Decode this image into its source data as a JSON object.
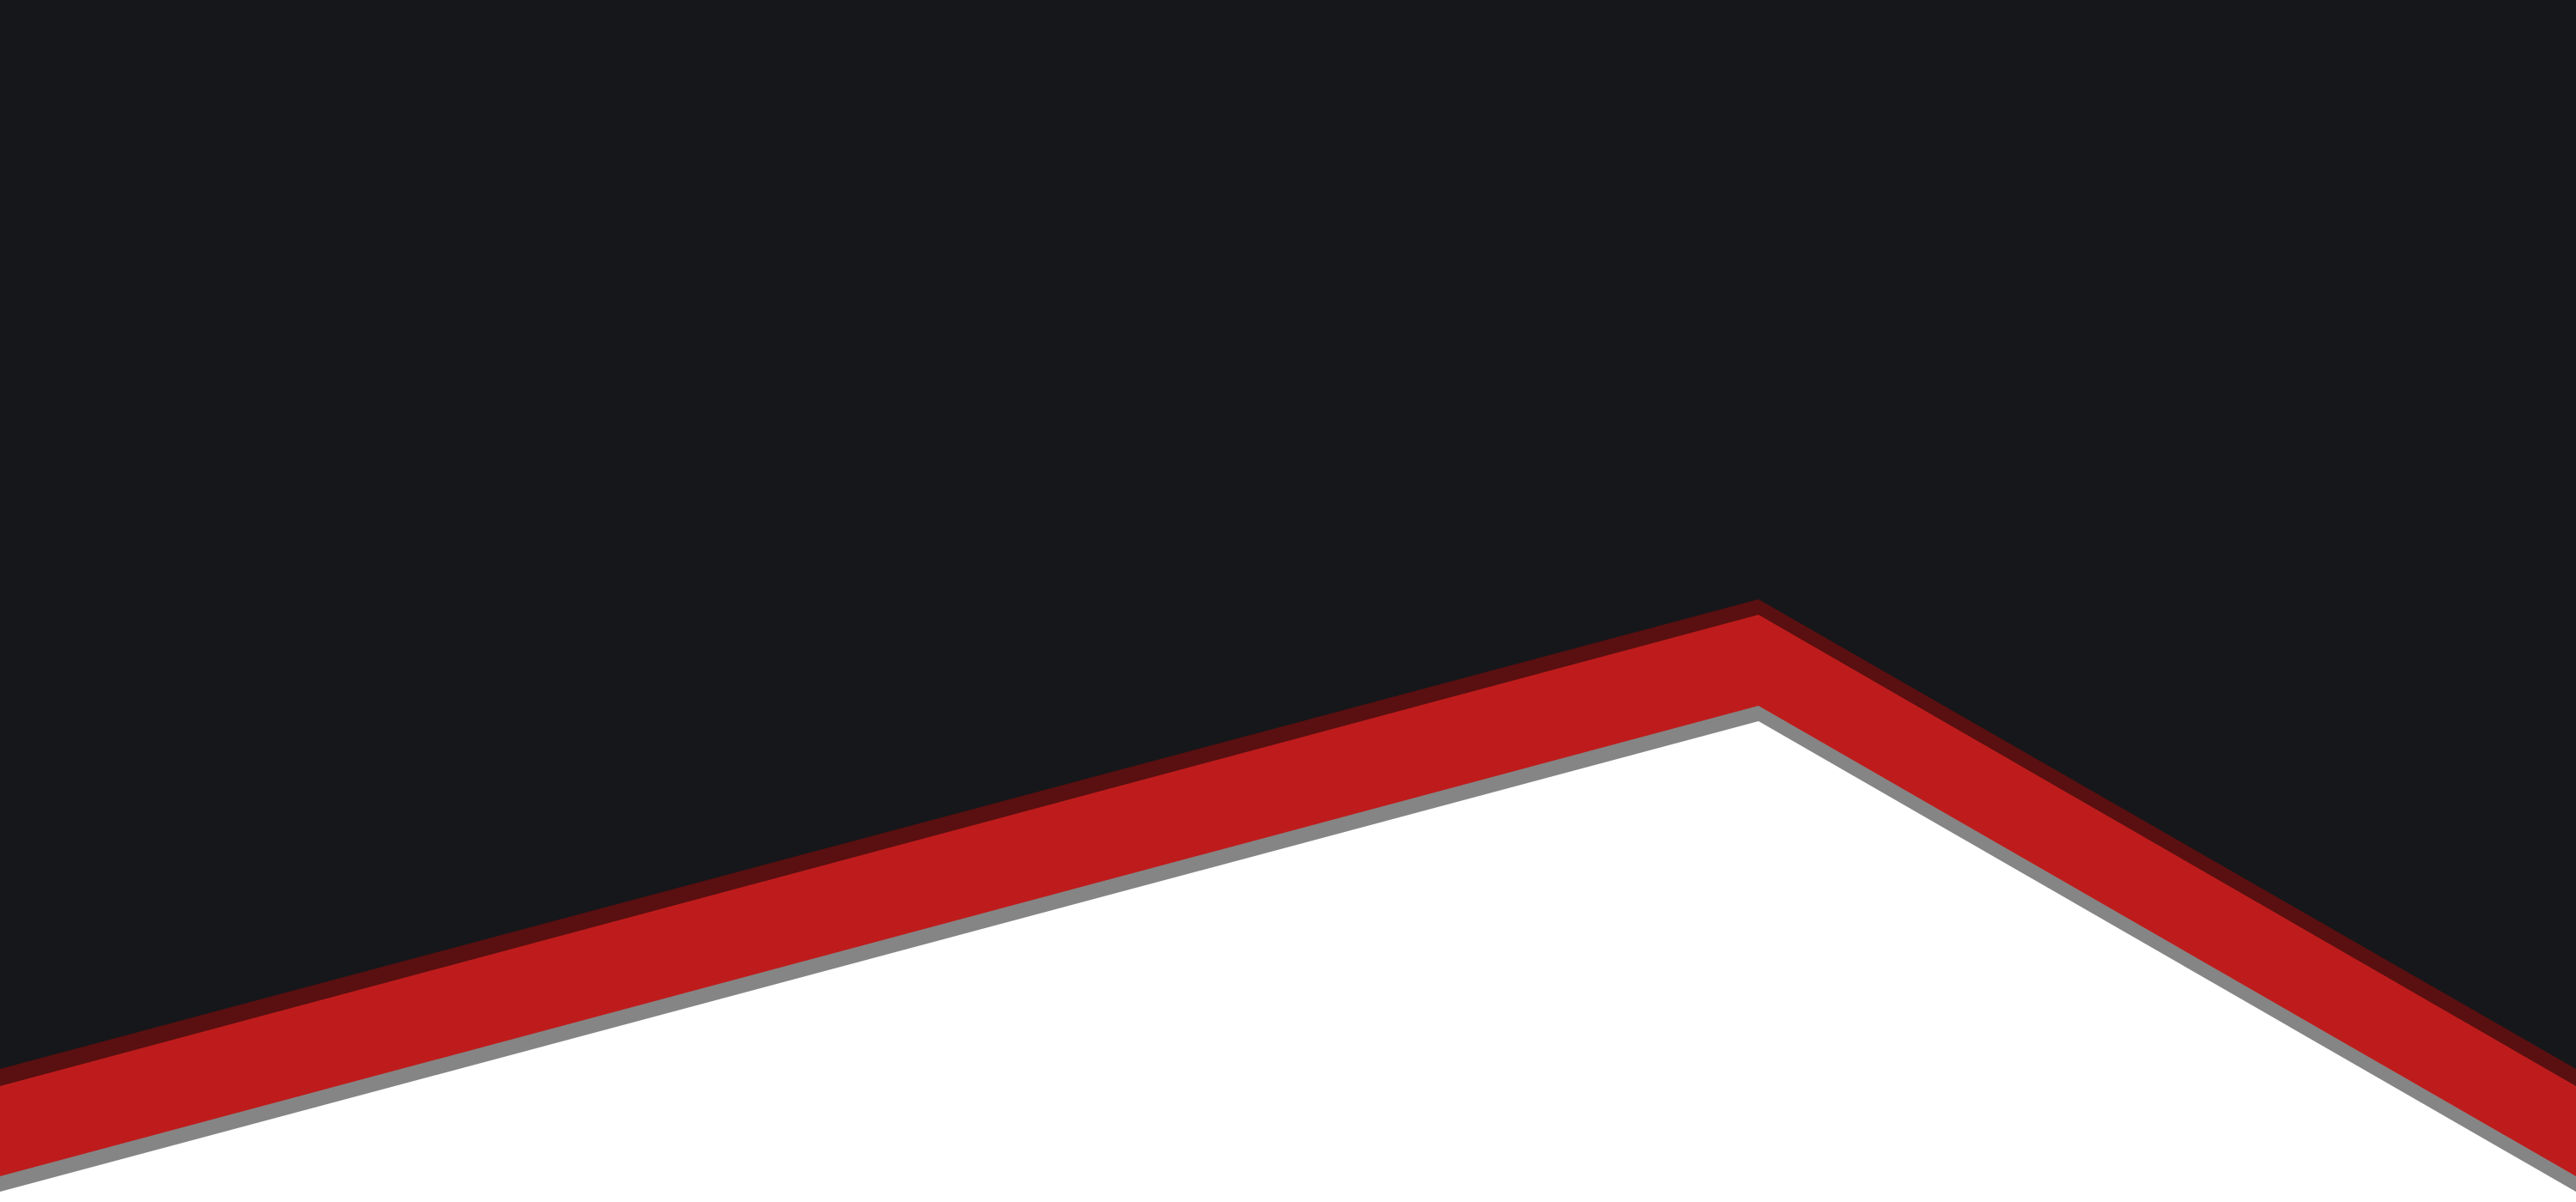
{
  "colors": {
    "background_dark": "#16171a",
    "band_dark_edge": "#5a0f10",
    "band_red": "#be1c1c",
    "shadow_gray": "#858585",
    "surface_white": "#ffffff"
  },
  "shapes": [
    "dark-background",
    "dark-red-edge",
    "red-chevron-band",
    "gray-shadow-edge",
    "white-lower-area"
  ]
}
